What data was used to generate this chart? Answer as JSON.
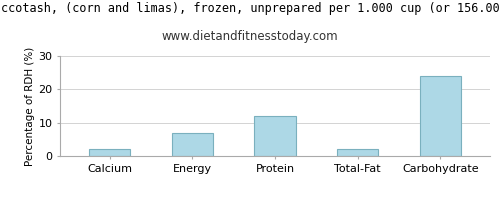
{
  "title_line1": "ccotash, (corn and limas), frozen, unprepared per 1.000 cup (or 156.00",
  "title_line2": "www.dietandfitnesstoday.com",
  "categories": [
    "Calcium",
    "Energy",
    "Protein",
    "Total-Fat",
    "Carbohydrate"
  ],
  "values": [
    2.0,
    7.0,
    12.0,
    2.0,
    24.0
  ],
  "bar_color": "#add8e6",
  "bar_edge_color": "#7ab0be",
  "ylabel": "Percentage of RDH (%)",
  "ylim": [
    0,
    30
  ],
  "yticks": [
    0,
    10,
    20,
    30
  ],
  "grid_color": "#cccccc",
  "background_color": "#ffffff",
  "title_fontsize": 8.5,
  "subtitle_fontsize": 8.5,
  "ylabel_fontsize": 7.5,
  "tick_fontsize": 8,
  "title_color": "#000000",
  "subtitle_color": "#333333",
  "border_color": "#aaaaaa"
}
